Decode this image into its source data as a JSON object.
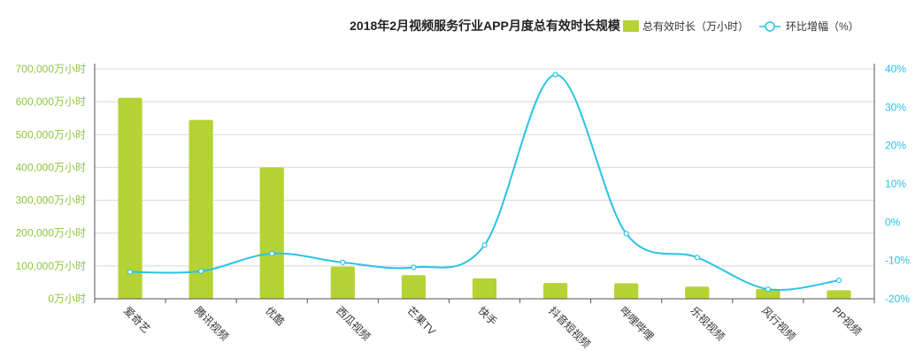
{
  "chart_data": {
    "type": "bar",
    "title": "2018年2月视频服务行业APP月度总有效时长规模",
    "categories": [
      "爱奇艺",
      "腾讯视频",
      "优酷",
      "西瓜视频",
      "芒果TV",
      "快手",
      "抖音短视频",
      "哔哩哔哩",
      "乐视视频",
      "风行视频",
      "PP视频"
    ],
    "series": [
      {
        "name": "总有效时长（万小时）",
        "type": "bar",
        "axis": "left",
        "color": "#b5d334",
        "values": [
          612000,
          545000,
          400000,
          98000,
          72000,
          62000,
          48000,
          47000,
          37000,
          30000,
          26000
        ]
      },
      {
        "name": "环比增幅（%）",
        "type": "line",
        "axis": "right",
        "color": "#2ac3e6",
        "values": [
          -13,
          -12.8,
          -8.2,
          -10.5,
          -11.8,
          -6,
          38.5,
          -3,
          -9.2,
          -17.5,
          -15.2
        ]
      }
    ],
    "left_axis": {
      "ylim": [
        0,
        700000
      ],
      "ticks": [
        0,
        100000,
        200000,
        300000,
        400000,
        500000,
        600000,
        700000
      ],
      "tick_labels": [
        "0万小时",
        "100,000万小时",
        "200,000万小时",
        "300,000万小时",
        "400,000万小时",
        "500,000万小时",
        "600,000万小时",
        "700,000万小时"
      ],
      "color": "#8dc63f"
    },
    "right_axis": {
      "ylim": [
        -20,
        40
      ],
      "ticks": [
        -20,
        -10,
        0,
        10,
        20,
        30,
        40
      ],
      "tick_labels": [
        "-20%",
        "-10%",
        "0%",
        "10%",
        "20%",
        "30%",
        "40%"
      ],
      "color": "#2ac3e6"
    },
    "grid": true,
    "legend_position": "top-right"
  }
}
